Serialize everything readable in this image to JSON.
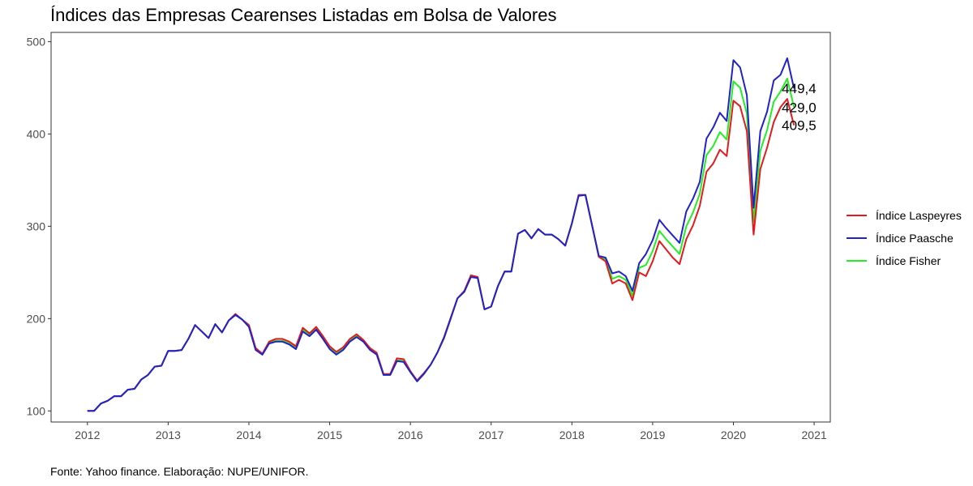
{
  "title": "Índices das Empresas Cearenses Listadas em Bolsa de Valores",
  "caption": "Fonte: Yahoo finance. Elaboração: NUPE/UNIFOR.",
  "chart_data": {
    "type": "line",
    "title": "Índices das Empresas Cearenses Listadas em Bolsa de Valores",
    "xlabel": "",
    "ylabel": "",
    "xlim": [
      2011.55,
      2021.2
    ],
    "ylim": [
      88,
      510
    ],
    "xticks": [
      2012,
      2013,
      2014,
      2015,
      2016,
      2017,
      2018,
      2019,
      2020,
      2021
    ],
    "yticks": [
      100,
      200,
      300,
      400,
      500
    ],
    "grid": false,
    "legend_position": "right",
    "x": [
      2012.0,
      2012.083,
      2012.167,
      2012.25,
      2012.333,
      2012.417,
      2012.5,
      2012.583,
      2012.667,
      2012.75,
      2012.833,
      2012.917,
      2013.0,
      2013.083,
      2013.167,
      2013.25,
      2013.333,
      2013.417,
      2013.5,
      2013.583,
      2013.667,
      2013.75,
      2013.833,
      2013.917,
      2014.0,
      2014.083,
      2014.167,
      2014.25,
      2014.333,
      2014.417,
      2014.5,
      2014.583,
      2014.667,
      2014.75,
      2014.833,
      2014.917,
      2015.0,
      2015.083,
      2015.167,
      2015.25,
      2015.333,
      2015.417,
      2015.5,
      2015.583,
      2015.667,
      2015.75,
      2015.833,
      2015.917,
      2016.0,
      2016.083,
      2016.167,
      2016.25,
      2016.333,
      2016.417,
      2016.5,
      2016.583,
      2016.667,
      2016.75,
      2016.833,
      2016.917,
      2017.0,
      2017.083,
      2017.167,
      2017.25,
      2017.333,
      2017.417,
      2017.5,
      2017.583,
      2017.667,
      2017.75,
      2017.833,
      2017.917,
      2018.0,
      2018.083,
      2018.167,
      2018.25,
      2018.333,
      2018.417,
      2018.5,
      2018.583,
      2018.667,
      2018.75,
      2018.833,
      2018.917,
      2019.0,
      2019.083,
      2019.167,
      2019.25,
      2019.333,
      2019.417,
      2019.5,
      2019.583,
      2019.667,
      2019.75,
      2019.833,
      2019.917,
      2020.0,
      2020.083,
      2020.167,
      2020.25,
      2020.333,
      2020.417,
      2020.5,
      2020.583,
      2020.667,
      2020.75
    ],
    "series": [
      {
        "name": "Índice Laspeyres",
        "color": "#e41a1c",
        "values": [
          100,
          100,
          108,
          111,
          116,
          116,
          123,
          124,
          134,
          139,
          148,
          149,
          165,
          165,
          166,
          178,
          193,
          186,
          179,
          194,
          185,
          198,
          205,
          199,
          193,
          168,
          162,
          175,
          178,
          178,
          175,
          170,
          190,
          184,
          191,
          181,
          170,
          164,
          169,
          178,
          183,
          177,
          168,
          163,
          140,
          140,
          157,
          156,
          143,
          133,
          141,
          150,
          163,
          179,
          200,
          222,
          230,
          247,
          245,
          210,
          213,
          235,
          251,
          251,
          292,
          296,
          287,
          297,
          291,
          291,
          286,
          279,
          303,
          334,
          334,
          301,
          267,
          262,
          238,
          242,
          238,
          220,
          250,
          246,
          262,
          284,
          275,
          266,
          259,
          286,
          301,
          322,
          359,
          368,
          383,
          376,
          436,
          430,
          403,
          291,
          362,
          385,
          413,
          429,
          438,
          409.5
        ]
      },
      {
        "name": "Índice Paasche",
        "color": "#2222cc",
        "values": [
          100,
          100,
          108,
          111,
          116,
          116,
          123,
          124,
          134,
          139,
          148,
          149,
          165,
          165,
          166,
          178,
          193,
          186,
          179,
          194,
          185,
          198,
          204,
          199,
          191,
          166,
          161,
          173,
          175,
          175,
          172,
          167,
          186,
          181,
          188,
          178,
          167,
          161,
          166,
          175,
          180,
          175,
          166,
          161,
          139,
          139,
          154,
          153,
          142,
          132,
          140,
          150,
          163,
          180,
          201,
          222,
          229,
          245,
          244,
          210,
          213,
          235,
          251,
          251,
          292,
          296,
          287,
          297,
          291,
          291,
          286,
          279,
          303,
          333,
          334,
          301,
          268,
          266,
          249,
          251,
          246,
          230,
          260,
          270,
          285,
          307,
          298,
          290,
          282,
          316,
          330,
          348,
          395,
          407,
          423,
          414,
          480,
          472,
          442,
          320,
          403,
          424,
          458,
          464,
          482,
          449.4
        ]
      },
      {
        "name": "Índice Fisher",
        "color": "#22ee22",
        "values": [
          100,
          100,
          108,
          111,
          116,
          116,
          123,
          124,
          134,
          139,
          148,
          149,
          165,
          165,
          166,
          178,
          193,
          186,
          179,
          194,
          185,
          198,
          204,
          199,
          192,
          167,
          161,
          174,
          176,
          176,
          173,
          168,
          188,
          182,
          189,
          179,
          168,
          162,
          167,
          176,
          181,
          176,
          167,
          162,
          139,
          139,
          155,
          154,
          142,
          132,
          140,
          150,
          163,
          179,
          200,
          222,
          229,
          246,
          244,
          210,
          213,
          235,
          251,
          251,
          292,
          296,
          287,
          297,
          291,
          291,
          286,
          279,
          303,
          333,
          334,
          301,
          267,
          264,
          243,
          246,
          242,
          225,
          255,
          258,
          273,
          295,
          286,
          278,
          270,
          300,
          315,
          335,
          377,
          387,
          402,
          394,
          457,
          450,
          422,
          305,
          382,
          404,
          435,
          446,
          460,
          429.0
        ]
      }
    ],
    "end_labels": [
      "449,4",
      "429,0",
      "409,5"
    ]
  }
}
